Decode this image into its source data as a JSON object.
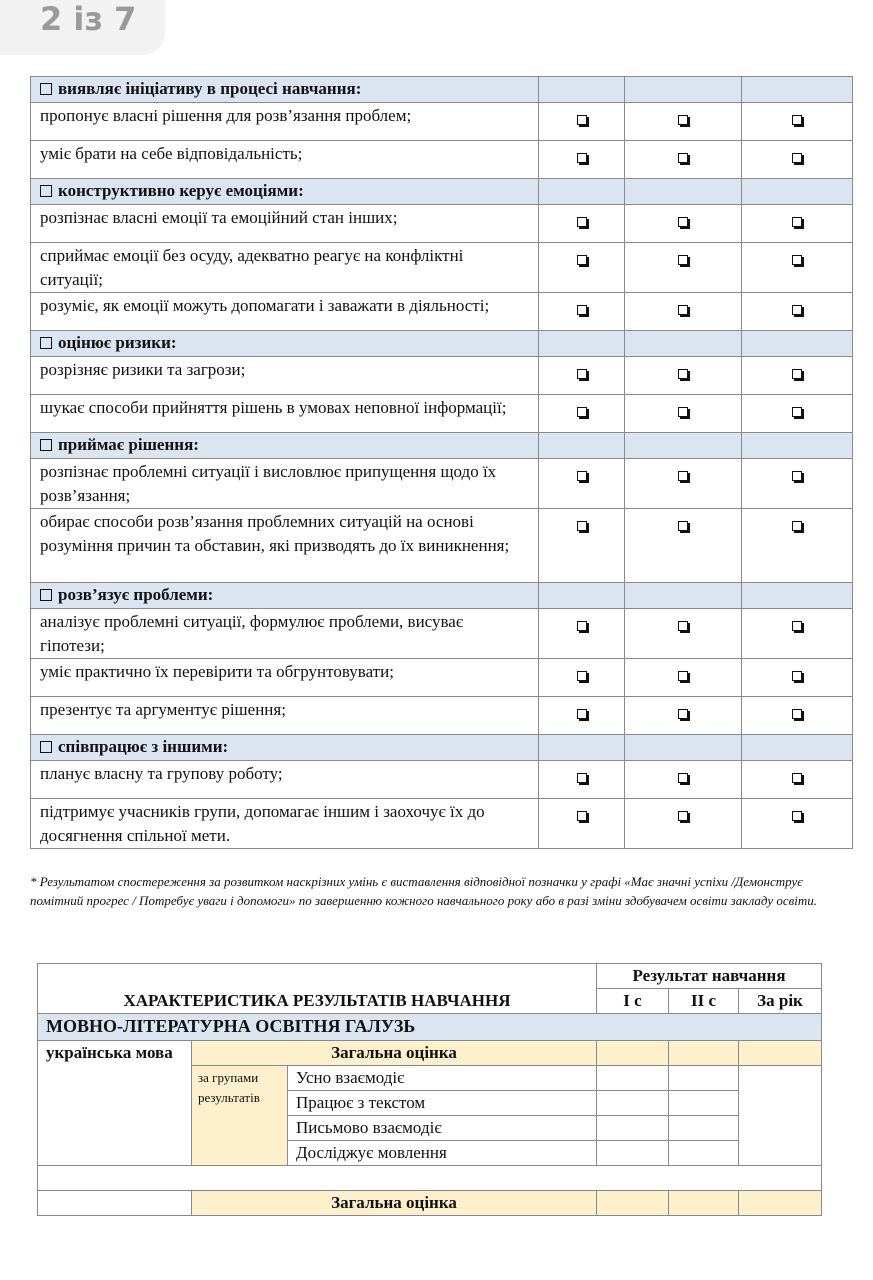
{
  "pager": {
    "label": "2 із 7"
  },
  "skills": [
    {
      "title": "виявляє ініціативу в процесі навчання:",
      "items": [
        "пропонує власні рішення для розв’язання проблем;",
        "уміє брати на себе відповідальність;"
      ]
    },
    {
      "title": "конструктивно керує емоціями:",
      "items": [
        "розпізнає власні емоції та емоційний стан інших;",
        "сприймає емоції без осуду, адекватно реагує на конфліктні ситуації;",
        "розуміє, як емоції можуть допомагати і заважати в діяльності;"
      ]
    },
    {
      "title": "оцінює ризики:",
      "items": [
        "розрізняє  ризики та загрози;",
        "шукає способи прийняття рішень в умовах неповної інформації;"
      ]
    },
    {
      "title": "приймає рішення:",
      "items": [
        "розпізнає проблемні ситуації і висловлює припущення щодо їх розв’язання;",
        "обирає способи розв’язання проблемних ситуацій на основі розуміння причин та обставин, які призводять до їх виникнення;"
      ]
    },
    {
      "title": "розв’язує проблеми:",
      "items": [
        "аналізує проблемні ситуації, формулює проблеми, висуває гіпотези;",
        "уміє практично їх перевірити та обгрунтовувати;",
        "презентує та аргументує рішення;"
      ]
    },
    {
      "title": "співпрацює з іншими:",
      "items": [
        "планує власну та групову роботу;",
        "підтримує учасників групи, допомагає іншим і заохочує їх до досягнення спільної мети."
      ]
    }
  ],
  "footnote": "* Результатом спостереження за розвитком наскрізних умінь є виставлення відповідної позначки у графі «Має значні успіхи /Демонструє помітний прогрес / Потребує уваги і допомоги» по завершенню кожного навчального року або в разі зміни здобувачем освіти закладу освіти.",
  "results": {
    "title": "ХАРАКТЕРИСТИКА РЕЗУЛЬТАТІВ НАВЧАННЯ",
    "result_header": "Результат навчання",
    "cols": [
      "І с",
      "ІІ с",
      "За рік"
    ],
    "area": "МОВНО-ЛІТЕРАТУРНА ОСВІТНЯ ГАЛУЗЬ",
    "subject": "українська мова",
    "overall": "Загальна оцінка",
    "groups_label": "за групами результатів",
    "groups": [
      "Усно взаємодіє",
      "Працює з текстом",
      "Письмово взаємодіє",
      "Досліджує мовлення"
    ],
    "overall2": "Загальна оцінка"
  },
  "colors": {
    "header_bg": "#dbe5f1",
    "highlight_bg": "#fdf0cd"
  }
}
